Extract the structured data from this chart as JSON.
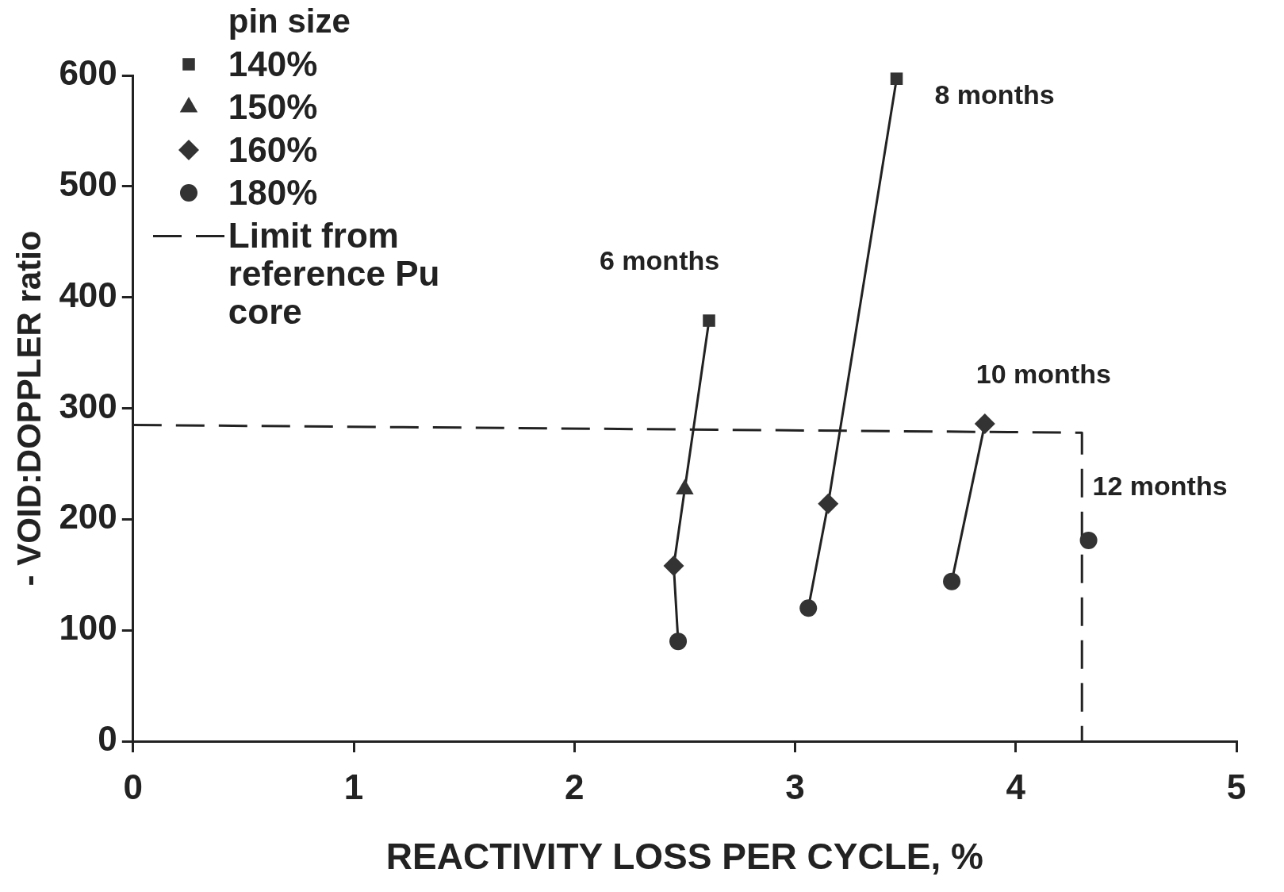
{
  "chart_data": {
    "type": "scatter",
    "xlabel": "REACTIVITY LOSS PER CYCLE, %",
    "ylabel": "- VOID:DOPPLER ratio",
    "legend_title": "pin size",
    "legend": "top left",
    "grid": false,
    "xlim": [
      0,
      5
    ],
    "xticks": [
      0,
      1,
      2,
      3,
      4,
      5
    ],
    "ylim": [
      0,
      600
    ],
    "yticks": [
      0,
      100,
      200,
      300,
      400,
      500,
      600
    ],
    "series": [
      {
        "name": "140%",
        "type": "scatter",
        "marker": "square",
        "color": "#333333",
        "x": [
          2.61,
          3.46
        ],
        "values": [
          379,
          597
        ]
      },
      {
        "name": "150%",
        "type": "scatter",
        "marker": "triangle",
        "color": "#333333",
        "x": [
          2.5
        ],
        "values": [
          227
        ]
      },
      {
        "name": "160%",
        "type": "scatter",
        "marker": "diamond",
        "color": "#333333",
        "x": [
          2.45,
          3.15,
          3.86
        ],
        "values": [
          158,
          214,
          286
        ]
      },
      {
        "name": "180%",
        "type": "scatter",
        "marker": "circle",
        "color": "#333333",
        "x": [
          2.47,
          3.06,
          3.71,
          4.33
        ],
        "values": [
          90,
          120,
          144,
          181
        ]
      },
      {
        "type": "line",
        "marker": "none",
        "color": "#222222",
        "x": [
          2.47,
          2.45,
          2.5,
          2.61
        ],
        "values": [
          90,
          158,
          227,
          379
        ]
      },
      {
        "type": "line",
        "marker": "none",
        "color": "#222222",
        "x": [
          3.06,
          3.15,
          3.46
        ],
        "values": [
          120,
          214,
          597
        ]
      },
      {
        "type": "line",
        "marker": "none",
        "color": "#222222",
        "x": [
          3.71,
          3.86
        ],
        "values": [
          144,
          286
        ]
      },
      {
        "name": "Limit from reference Pu core",
        "type": "line",
        "marker": "none",
        "line_style": "dashed",
        "color": "#222222",
        "x": [
          0,
          4.3,
          4.3
        ],
        "values": [
          285,
          278,
          0
        ]
      }
    ],
    "annotations": [
      {
        "text": "6 months",
        "x": 2.61,
        "y": 379
      },
      {
        "text": "8 months",
        "x": 3.46,
        "y": 597
      },
      {
        "text": "10 months",
        "x": 3.86,
        "y": 286
      },
      {
        "text": "12 months",
        "x": 4.33,
        "y": 181
      }
    ]
  }
}
